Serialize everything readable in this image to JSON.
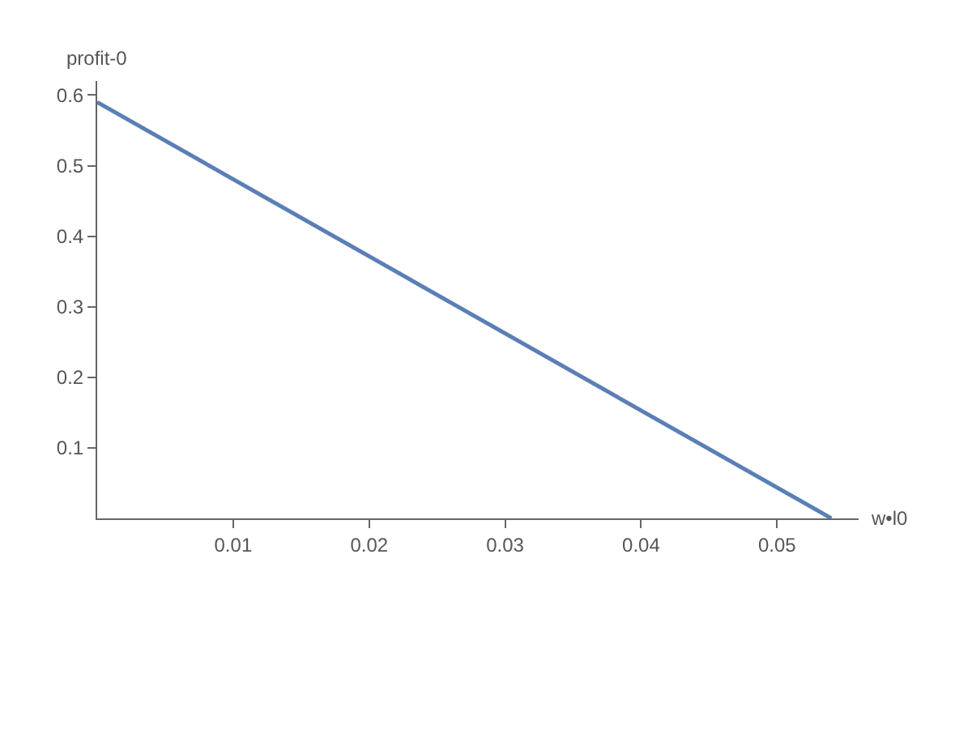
{
  "chart_data": {
    "type": "line",
    "xlabel": "w•l0",
    "ylabel": "profit-0",
    "x": [
      0,
      0.054
    ],
    "series": [
      {
        "color": "#5b7fb5",
        "values": [
          0.59,
          0
        ]
      }
    ],
    "xlim": [
      0,
      0.056
    ],
    "xticks": [
      0.01,
      0.02,
      0.03,
      0.04,
      0.05
    ],
    "ylim": [
      0,
      0.62
    ],
    "yticks": [
      0.1,
      0.2,
      0.3,
      0.4,
      0.5,
      0.6
    ],
    "grid": false,
    "marker": "none",
    "line_style": "solid"
  }
}
